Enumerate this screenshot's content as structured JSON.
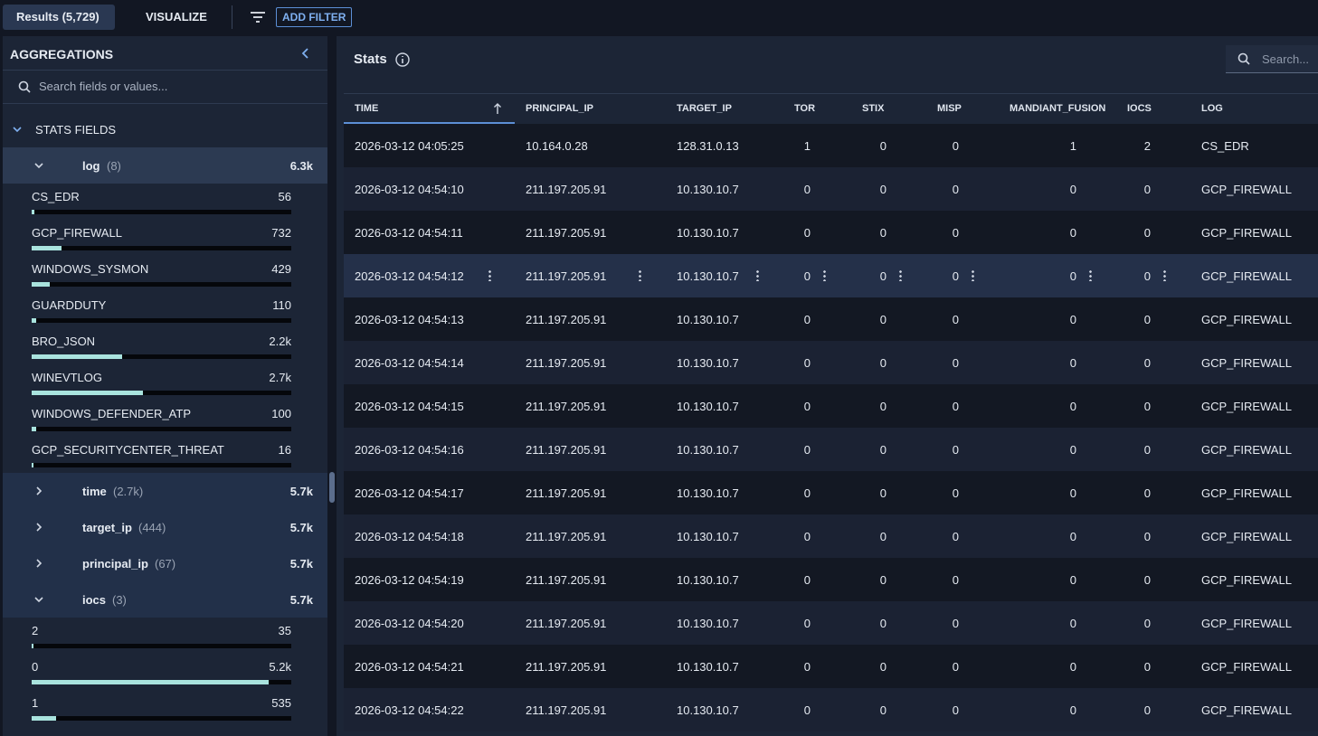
{
  "topbar": {
    "results_tab": "Results (5,729)",
    "visualize_tab": "VISUALIZE",
    "add_filter": "ADD FILTER"
  },
  "aggregations": {
    "title": "AGGREGATIONS",
    "search_placeholder": "Search fields or values...",
    "section": "STATS FIELDS",
    "groups": [
      {
        "name": "log",
        "count": "(8)",
        "total": {
          "value": 6300,
          "label": "6.3k"
        },
        "expanded": true,
        "items": [
          {
            "label": "CS_EDR",
            "count": 56
          },
          {
            "label": "GCP_FIREWALL",
            "count": 732
          },
          {
            "label": "WINDOWS_SYSMON",
            "count": 429
          },
          {
            "label": "GUARDDUTY",
            "count": 110
          },
          {
            "label": "BRO_JSON",
            "count": {
              "value": 2200,
              "label": "2.2k"
            }
          },
          {
            "label": "WINEVTLOG",
            "count": {
              "value": 2700,
              "label": "2.7k"
            }
          },
          {
            "label": "WINDOWS_DEFENDER_ATP",
            "count": 100
          },
          {
            "label": "GCP_SECURITYCENTER_THREAT",
            "count": 16
          }
        ]
      },
      {
        "name": "time",
        "count": "(2.7k)",
        "total": "5.7k",
        "expanded": false,
        "items": []
      },
      {
        "name": "target_ip",
        "count": "(444)",
        "total": "5.7k",
        "expanded": false,
        "items": []
      },
      {
        "name": "principal_ip",
        "count": "(67)",
        "total": "5.7k",
        "expanded": false,
        "items": []
      },
      {
        "name": "iocs",
        "count": "(3)",
        "total": {
          "value": 5700,
          "label": "5.7k"
        },
        "expanded": true,
        "items": [
          {
            "label": "2",
            "count": 35
          },
          {
            "label": "0",
            "count": {
              "value": 5200,
              "label": "5.2k"
            }
          },
          {
            "label": "1",
            "count": 535
          }
        ]
      }
    ]
  },
  "stats": {
    "title": "Stats",
    "search_placeholder": "Search...",
    "table": {
      "columns": [
        "TIME",
        "PRINCIPAL_IP",
        "TARGET_IP",
        "TOR",
        "STIX",
        "MISP",
        "MANDIANT_FUSION",
        "IOCS",
        "LOG"
      ],
      "rows": [
        [
          "2026-03-12 04:05:25",
          "10.164.0.28",
          "128.31.0.13",
          1,
          0,
          0,
          1,
          2,
          "CS_EDR"
        ],
        [
          "2026-03-12 04:54:10",
          "211.197.205.91",
          "10.130.10.7",
          0,
          0,
          0,
          0,
          0,
          "GCP_FIREWALL"
        ],
        [
          "2026-03-12 04:54:11",
          "211.197.205.91",
          "10.130.10.7",
          0,
          0,
          0,
          0,
          0,
          "GCP_FIREWALL"
        ],
        [
          "2026-03-12 04:54:12",
          "211.197.205.91",
          "10.130.10.7",
          0,
          0,
          0,
          0,
          0,
          "GCP_FIREWALL"
        ],
        [
          "2026-03-12 04:54:13",
          "211.197.205.91",
          "10.130.10.7",
          0,
          0,
          0,
          0,
          0,
          "GCP_FIREWALL"
        ],
        [
          "2026-03-12 04:54:14",
          "211.197.205.91",
          "10.130.10.7",
          0,
          0,
          0,
          0,
          0,
          "GCP_FIREWALL"
        ],
        [
          "2026-03-12 04:54:15",
          "211.197.205.91",
          "10.130.10.7",
          0,
          0,
          0,
          0,
          0,
          "GCP_FIREWALL"
        ],
        [
          "2026-03-12 04:54:16",
          "211.197.205.91",
          "10.130.10.7",
          0,
          0,
          0,
          0,
          0,
          "GCP_FIREWALL"
        ],
        [
          "2026-03-12 04:54:17",
          "211.197.205.91",
          "10.130.10.7",
          0,
          0,
          0,
          0,
          0,
          "GCP_FIREWALL"
        ],
        [
          "2026-03-12 04:54:18",
          "211.197.205.91",
          "10.130.10.7",
          0,
          0,
          0,
          0,
          0,
          "GCP_FIREWALL"
        ],
        [
          "2026-03-12 04:54:19",
          "211.197.205.91",
          "10.130.10.7",
          0,
          0,
          0,
          0,
          0,
          "GCP_FIREWALL"
        ],
        [
          "2026-03-12 04:54:20",
          "211.197.205.91",
          "10.130.10.7",
          0,
          0,
          0,
          0,
          0,
          "GCP_FIREWALL"
        ],
        [
          "2026-03-12 04:54:21",
          "211.197.205.91",
          "10.130.10.7",
          0,
          0,
          0,
          0,
          0,
          "GCP_FIREWALL"
        ],
        [
          "2026-03-12 04:54:22",
          "211.197.205.91",
          "10.130.10.7",
          0,
          0,
          0,
          0,
          0,
          "GCP_FIREWALL"
        ]
      ]
    }
  }
}
